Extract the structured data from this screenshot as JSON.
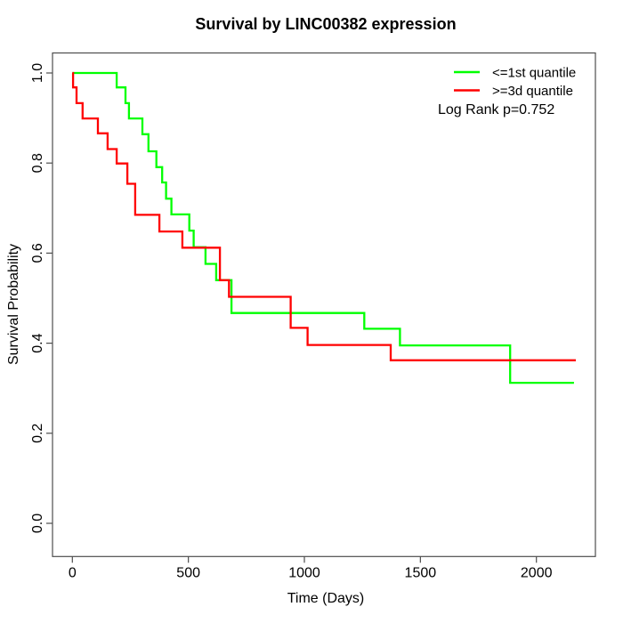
{
  "chart_data": {
    "type": "line",
    "subtype": "kaplan_meier_step",
    "title": "Survival by LINC00382 expression",
    "xlabel": "Time (Days)",
    "ylabel": "Survival Probability",
    "xlim": [
      -88,
      2257
    ],
    "ylim": [
      -0.075,
      1.045
    ],
    "grid": false,
    "legend_position": "top-right",
    "annotation": "Log Rank p=0.752",
    "x_ticks": [
      {
        "value": 0,
        "label": "0"
      },
      {
        "value": 500,
        "label": "500"
      },
      {
        "value": 1000,
        "label": "1000"
      },
      {
        "value": 1500,
        "label": "1500"
      },
      {
        "value": 2000,
        "label": "2000"
      }
    ],
    "y_ticks": [
      {
        "value": 0.0,
        "label": "0.0"
      },
      {
        "value": 0.2,
        "label": "0.2"
      },
      {
        "value": 0.4,
        "label": "0.4"
      },
      {
        "value": 0.6,
        "label": "0.6"
      },
      {
        "value": 0.8,
        "label": "0.8"
      },
      {
        "value": 1.0,
        "label": "1.0"
      }
    ],
    "series": [
      {
        "name": "<=1st quantile",
        "color": "#00ff00",
        "end_time": 2162,
        "points": [
          [
            0,
            1.0
          ],
          [
            191,
            0.968
          ],
          [
            229,
            0.933
          ],
          [
            244,
            0.899
          ],
          [
            302,
            0.864
          ],
          [
            328,
            0.826
          ],
          [
            362,
            0.791
          ],
          [
            387,
            0.757
          ],
          [
            404,
            0.721
          ],
          [
            427,
            0.686
          ],
          [
            504,
            0.65
          ],
          [
            523,
            0.613
          ],
          [
            574,
            0.576
          ],
          [
            620,
            0.54
          ],
          [
            686,
            0.467
          ],
          [
            1258,
            0.432
          ],
          [
            1412,
            0.395
          ],
          [
            1887,
            0.312
          ]
        ]
      },
      {
        "name": ">=3d quantile",
        "color": "#ff0000",
        "end_time": 2170,
        "points": [
          [
            0,
            1.0
          ],
          [
            3,
            0.968
          ],
          [
            18,
            0.933
          ],
          [
            44,
            0.899
          ],
          [
            110,
            0.866
          ],
          [
            152,
            0.831
          ],
          [
            191,
            0.799
          ],
          [
            237,
            0.754
          ],
          [
            271,
            0.685
          ],
          [
            375,
            0.648
          ],
          [
            474,
            0.612
          ],
          [
            636,
            0.54
          ],
          [
            675,
            0.503
          ],
          [
            941,
            0.434
          ],
          [
            1014,
            0.396
          ],
          [
            1372,
            0.362
          ]
        ]
      }
    ]
  }
}
